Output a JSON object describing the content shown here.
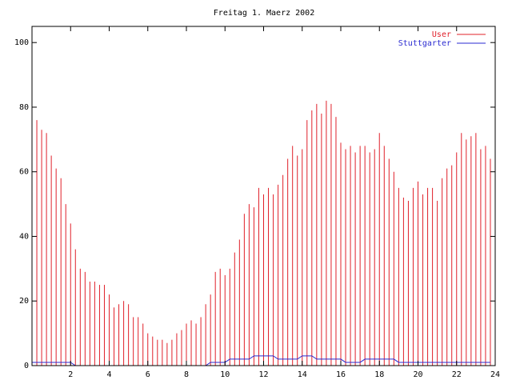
{
  "chart_data": {
    "type": "impulses",
    "title": "Freitag 1. Maerz 2002",
    "x": [
      0,
      0.25,
      0.5,
      0.75,
      1,
      1.25,
      1.5,
      1.75,
      2,
      2.25,
      2.5,
      2.75,
      3,
      3.25,
      3.5,
      3.75,
      4,
      4.25,
      4.5,
      4.75,
      5,
      5.25,
      5.5,
      5.75,
      6,
      6.25,
      6.5,
      6.75,
      7,
      7.25,
      7.5,
      7.75,
      8,
      8.25,
      8.5,
      8.75,
      9,
      9.25,
      9.5,
      9.75,
      10,
      10.25,
      10.5,
      10.75,
      11,
      11.25,
      11.5,
      11.75,
      12,
      12.25,
      12.5,
      12.75,
      13,
      13.25,
      13.5,
      13.75,
      14,
      14.25,
      14.5,
      14.75,
      15,
      15.25,
      15.5,
      15.75,
      16,
      16.25,
      16.5,
      16.75,
      17,
      17.25,
      17.5,
      17.75,
      18,
      18.25,
      18.5,
      18.75,
      19,
      19.25,
      19.5,
      19.75,
      20,
      20.25,
      20.5,
      20.75,
      21,
      21.25,
      21.5,
      21.75,
      22,
      22.25,
      22.5,
      22.75,
      23,
      23.25,
      23.5,
      23.75
    ],
    "series": [
      {
        "name": "User",
        "color": "#e0202a",
        "style": "impulses",
        "values": [
          86,
          76,
          73,
          72,
          65,
          61,
          58,
          50,
          44,
          36,
          30,
          29,
          26,
          26,
          25,
          25,
          22,
          18,
          19,
          20,
          19,
          15,
          15,
          13,
          10,
          9,
          8,
          8,
          7,
          8,
          10,
          11,
          13,
          14,
          13,
          15,
          19,
          22,
          29,
          30,
          28,
          30,
          35,
          39,
          47,
          50,
          49,
          55,
          53,
          55,
          53,
          56,
          59,
          64,
          68,
          65,
          67,
          76,
          79,
          81,
          78,
          82,
          81,
          77,
          69,
          67,
          68,
          66,
          68,
          68,
          66,
          67,
          72,
          68,
          64,
          60,
          55,
          52,
          51,
          55,
          57,
          53,
          55,
          55,
          51,
          58,
          61,
          62,
          66,
          72,
          70,
          71,
          72,
          67,
          68,
          64
        ]
      },
      {
        "name": "Stuttgarter",
        "color": "#2a2ad0",
        "style": "line",
        "values": [
          1,
          1,
          1,
          1,
          1,
          1,
          1,
          1,
          1,
          0,
          0,
          0,
          0,
          0,
          0,
          0,
          0,
          0,
          0,
          0,
          0,
          0,
          0,
          0,
          0,
          0,
          0,
          0,
          0,
          0,
          0,
          0,
          0,
          0,
          0,
          0,
          0,
          1,
          1,
          1,
          1,
          2,
          2,
          2,
          2,
          2,
          3,
          3,
          3,
          3,
          3,
          2,
          2,
          2,
          2,
          2,
          3,
          3,
          3,
          2,
          2,
          2,
          2,
          2,
          2,
          1,
          1,
          1,
          1,
          2,
          2,
          2,
          2,
          2,
          2,
          2,
          1,
          1,
          1,
          1,
          1,
          1,
          1,
          1,
          1,
          1,
          1,
          1,
          1,
          1,
          1,
          1,
          1,
          1,
          1,
          1
        ]
      }
    ],
    "xlim": [
      0,
      24
    ],
    "xticks": [
      2,
      4,
      6,
      8,
      10,
      12,
      14,
      16,
      18,
      20,
      22,
      24
    ],
    "ylim": [
      0,
      105
    ],
    "yticks": [
      0,
      20,
      40,
      60,
      80,
      100
    ],
    "legend": "top-right"
  }
}
